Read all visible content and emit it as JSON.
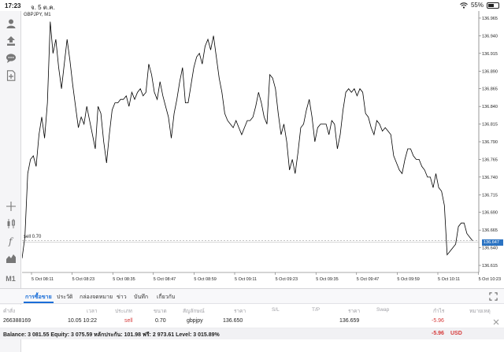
{
  "status": {
    "time": "17:23",
    "date": "จ. 5 ต.ค.",
    "battery": "55%",
    "battery_level": 0.55,
    "wifi_icon": "wifi-icon"
  },
  "toolbar": {
    "icons": [
      "account-icon",
      "trade-icon",
      "chat-icon",
      "new-order-icon",
      "crosshair-icon",
      "indicators-icon",
      "function-icon",
      "objects-icon",
      "timeframe-icon",
      "add-icon"
    ],
    "timeframe_label": "M1"
  },
  "chart": {
    "symbol_label": "GBPJPY, M1",
    "order_line_label": "sell 0.70",
    "current_price_label": "136.647"
  },
  "chart_data": {
    "type": "line",
    "ylim": [
      136.605,
      136.975
    ],
    "y_ticks": [
      "136.615",
      "136.640",
      "136.665",
      "136.690",
      "136.715",
      "136.740",
      "136.765",
      "136.790",
      "136.815",
      "136.840",
      "136.865",
      "136.890",
      "136.915",
      "136.940",
      "136.965"
    ],
    "y_tick_values": [
      136.615,
      136.64,
      136.665,
      136.69,
      136.715,
      136.74,
      136.765,
      136.79,
      136.815,
      136.84,
      136.865,
      136.89,
      136.915,
      136.94,
      136.965
    ],
    "x_ticks": [
      "5 Oct 08:11",
      "5 Oct 08:23",
      "5 Oct 08:35",
      "5 Oct 08:47",
      "5 Oct 08:59",
      "5 Oct 09:11",
      "5 Oct 09:23",
      "5 Oct 09:35",
      "5 Oct 09:47",
      "5 Oct 09:59",
      "5 Oct 10:11",
      "5 Oct 10:23"
    ],
    "sell_level": 136.65,
    "values": [
      136.625,
      136.655,
      136.745,
      136.765,
      136.77,
      136.755,
      136.8,
      136.825,
      136.795,
      136.845,
      136.96,
      136.915,
      136.935,
      136.895,
      136.865,
      136.9,
      136.935,
      136.905,
      136.87,
      136.84,
      136.81,
      136.825,
      136.815,
      136.84,
      136.82,
      136.8,
      136.78,
      136.84,
      136.83,
      136.79,
      136.76,
      136.8,
      136.835,
      136.845,
      136.845,
      136.85,
      136.85,
      136.855,
      136.84,
      136.86,
      136.85,
      136.86,
      136.865,
      136.855,
      136.86,
      136.9,
      136.885,
      136.86,
      136.85,
      136.875,
      136.855,
      136.84,
      136.825,
      136.795,
      136.83,
      136.85,
      136.875,
      136.895,
      136.845,
      136.845,
      136.87,
      136.895,
      136.91,
      136.915,
      136.9,
      136.925,
      136.935,
      136.92,
      136.94,
      136.91,
      136.88,
      136.86,
      136.83,
      136.82,
      136.815,
      136.81,
      136.82,
      136.81,
      136.8,
      136.81,
      136.82,
      136.82,
      136.825,
      136.84,
      136.86,
      136.845,
      136.825,
      136.815,
      136.885,
      136.88,
      136.865,
      136.83,
      136.8,
      136.815,
      136.79,
      136.75,
      136.765,
      136.745,
      136.775,
      136.81,
      136.815,
      136.835,
      136.85,
      136.825,
      136.79,
      136.81,
      136.815,
      136.815,
      136.815,
      136.8,
      136.82,
      136.815,
      136.78,
      136.8,
      136.835,
      136.86,
      136.865,
      136.86,
      136.865,
      136.855,
      136.865,
      136.86,
      136.83,
      136.825,
      136.81,
      136.8,
      136.82,
      136.815,
      136.805,
      136.81,
      136.805,
      136.8,
      136.77,
      136.76,
      136.75,
      136.745,
      136.765,
      136.78,
      136.78,
      136.77,
      136.765,
      136.765,
      136.755,
      136.75,
      136.74,
      136.74,
      136.725,
      136.745,
      136.725,
      136.72,
      136.7,
      136.63,
      136.635,
      136.64,
      136.645,
      136.67,
      136.675,
      136.675,
      136.66,
      136.655,
      136.65
    ]
  },
  "tabs": [
    "การซื้อขาย",
    "ประวัติ",
    "กล่องจดหมาย",
    "ข่าว",
    "บันทึก",
    "เกี่ยวกับ"
  ],
  "columns": [
    "คำสั่ง",
    "เวลา",
    "ประเภท",
    "ขนาด",
    "สัญลักษณ์",
    "ราคา",
    "S/L",
    "T/P",
    "ราคา",
    "Swap",
    "กำไร",
    "หมายเหตุ"
  ],
  "trade": {
    "ticket": "266388169",
    "time": "10.05 10:22",
    "type": "sell",
    "size": "0.70",
    "symbol": "gbpjpy",
    "open_price": "136.650",
    "current_price": "136.659",
    "profit": "-5.96"
  },
  "balance": {
    "text": "Balance: 3 081.55 Equity: 3 075.59 หลักประกัน: 101.98 ฟรี: 2 973.61 Level: 3 015.89%",
    "total": "-5.96",
    "currency": "USD"
  },
  "colors": {
    "accent": "#1a6ed8",
    "price_tag": "#2b73c2",
    "negative": "#d63b3b",
    "line": "#000000"
  }
}
